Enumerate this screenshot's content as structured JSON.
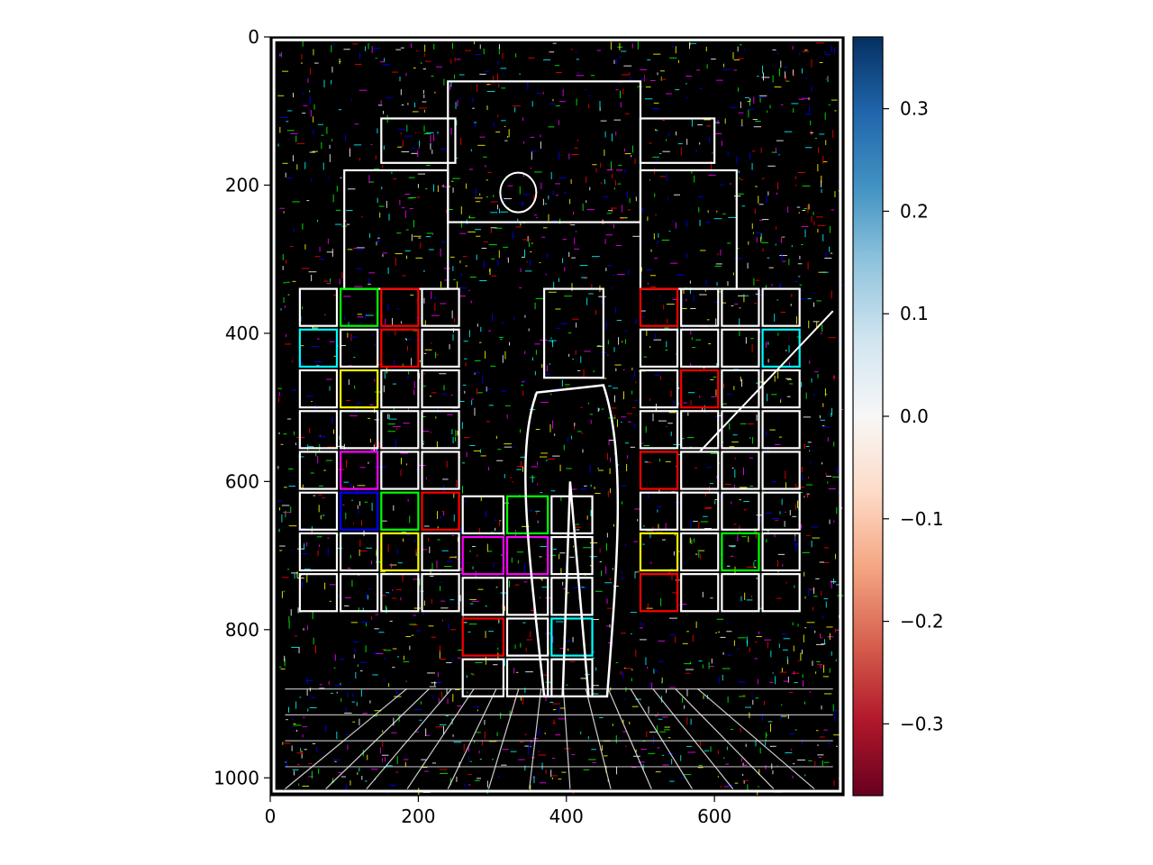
{
  "chart_data": {
    "type": "heatmap",
    "title": "",
    "xlabel": "",
    "ylabel": "",
    "xlim": [
      0,
      775
    ],
    "ylim": [
      1024,
      0
    ],
    "x_ticks": [
      0,
      200,
      400,
      600
    ],
    "y_ticks": [
      0,
      200,
      400,
      600,
      800,
      1000
    ],
    "grid": false,
    "colorbar": {
      "colormap": "RdBu",
      "range": [
        -0.37,
        0.37
      ],
      "ticks": [
        0.3,
        0.2,
        0.1,
        0.0,
        -0.1,
        -0.2,
        -0.3
      ],
      "tick_labels": [
        "0.3",
        "0.2",
        "0.1",
        "0.0",
        "−0.1",
        "−0.2",
        "−0.3"
      ],
      "colors": [
        "#67001f",
        "#b2182b",
        "#d6604d",
        "#f4a582",
        "#fddbc7",
        "#f7f7f7",
        "#d1e5f0",
        "#92c5de",
        "#4393c3",
        "#2166ac",
        "#053061"
      ]
    },
    "image_description_colors": {
      "background": "#000000",
      "edges": [
        "#ffffff",
        "#ffff00",
        "#00ffff",
        "#ff0000",
        "#0000ff",
        "#00ff00",
        "#ff00ff"
      ]
    }
  }
}
